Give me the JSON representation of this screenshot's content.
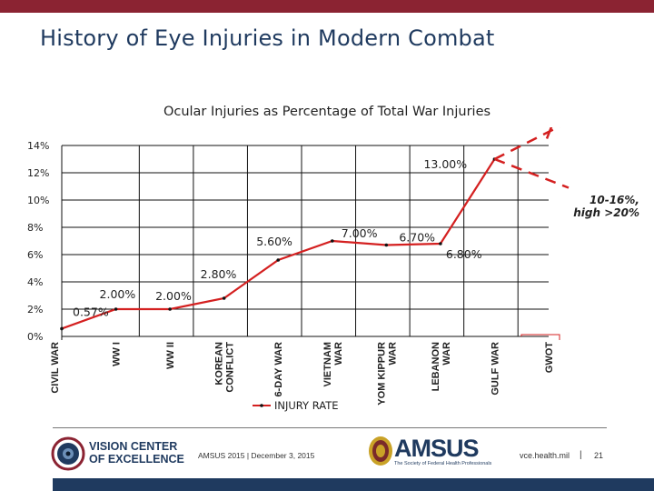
{
  "header": {
    "title": "History of Eye Injuries in Modern Combat"
  },
  "chart_data": {
    "type": "line",
    "title": "Ocular Injuries as Percentage of Total War Injuries",
    "xlabel": "",
    "ylabel": "",
    "ylim": [
      0,
      14
    ],
    "yticks": [
      "0%",
      "2%",
      "4%",
      "6%",
      "8%",
      "10%",
      "12%",
      "14%"
    ],
    "grid": true,
    "legend_position": "bottom",
    "categories": [
      "CIVIL WAR",
      "WW I",
      "WW II",
      "KOREAN CONFLICT",
      "6-DAY WAR",
      "VIETNAM WAR",
      "YOM KIPPUR WAR",
      "LEBANON WAR",
      "GULF WAR",
      "GWOT"
    ],
    "series": [
      {
        "name": "INJURY RATE",
        "values": [
          0.57,
          2.0,
          2.0,
          2.8,
          5.6,
          7.0,
          6.7,
          6.8,
          13.0,
          null
        ],
        "labels": [
          "0.57%",
          "2.00%",
          "2.00%",
          "2.80%",
          "5.60%",
          "7.00%",
          "6.70%",
          "6.80%",
          "13.00%",
          ""
        ]
      }
    ],
    "projection": {
      "category": "GWOT",
      "low": 10,
      "high": 20,
      "label_line1": "10-16%,",
      "label_line2": "high >20%"
    },
    "colors": {
      "line": "#d42020",
      "grid": "#111111",
      "marker": "#111111"
    }
  },
  "footer": {
    "org_line1": "VISION CENTER",
    "org_line2": "OF EXCELLENCE",
    "note": "AMSUS 2015 | December 3, 2015",
    "amsus_name": "AMSUS",
    "amsus_sub": "The Society of Federal Health Professionals",
    "url": "vce.health.mil",
    "separator": "|",
    "page_number": "21"
  }
}
